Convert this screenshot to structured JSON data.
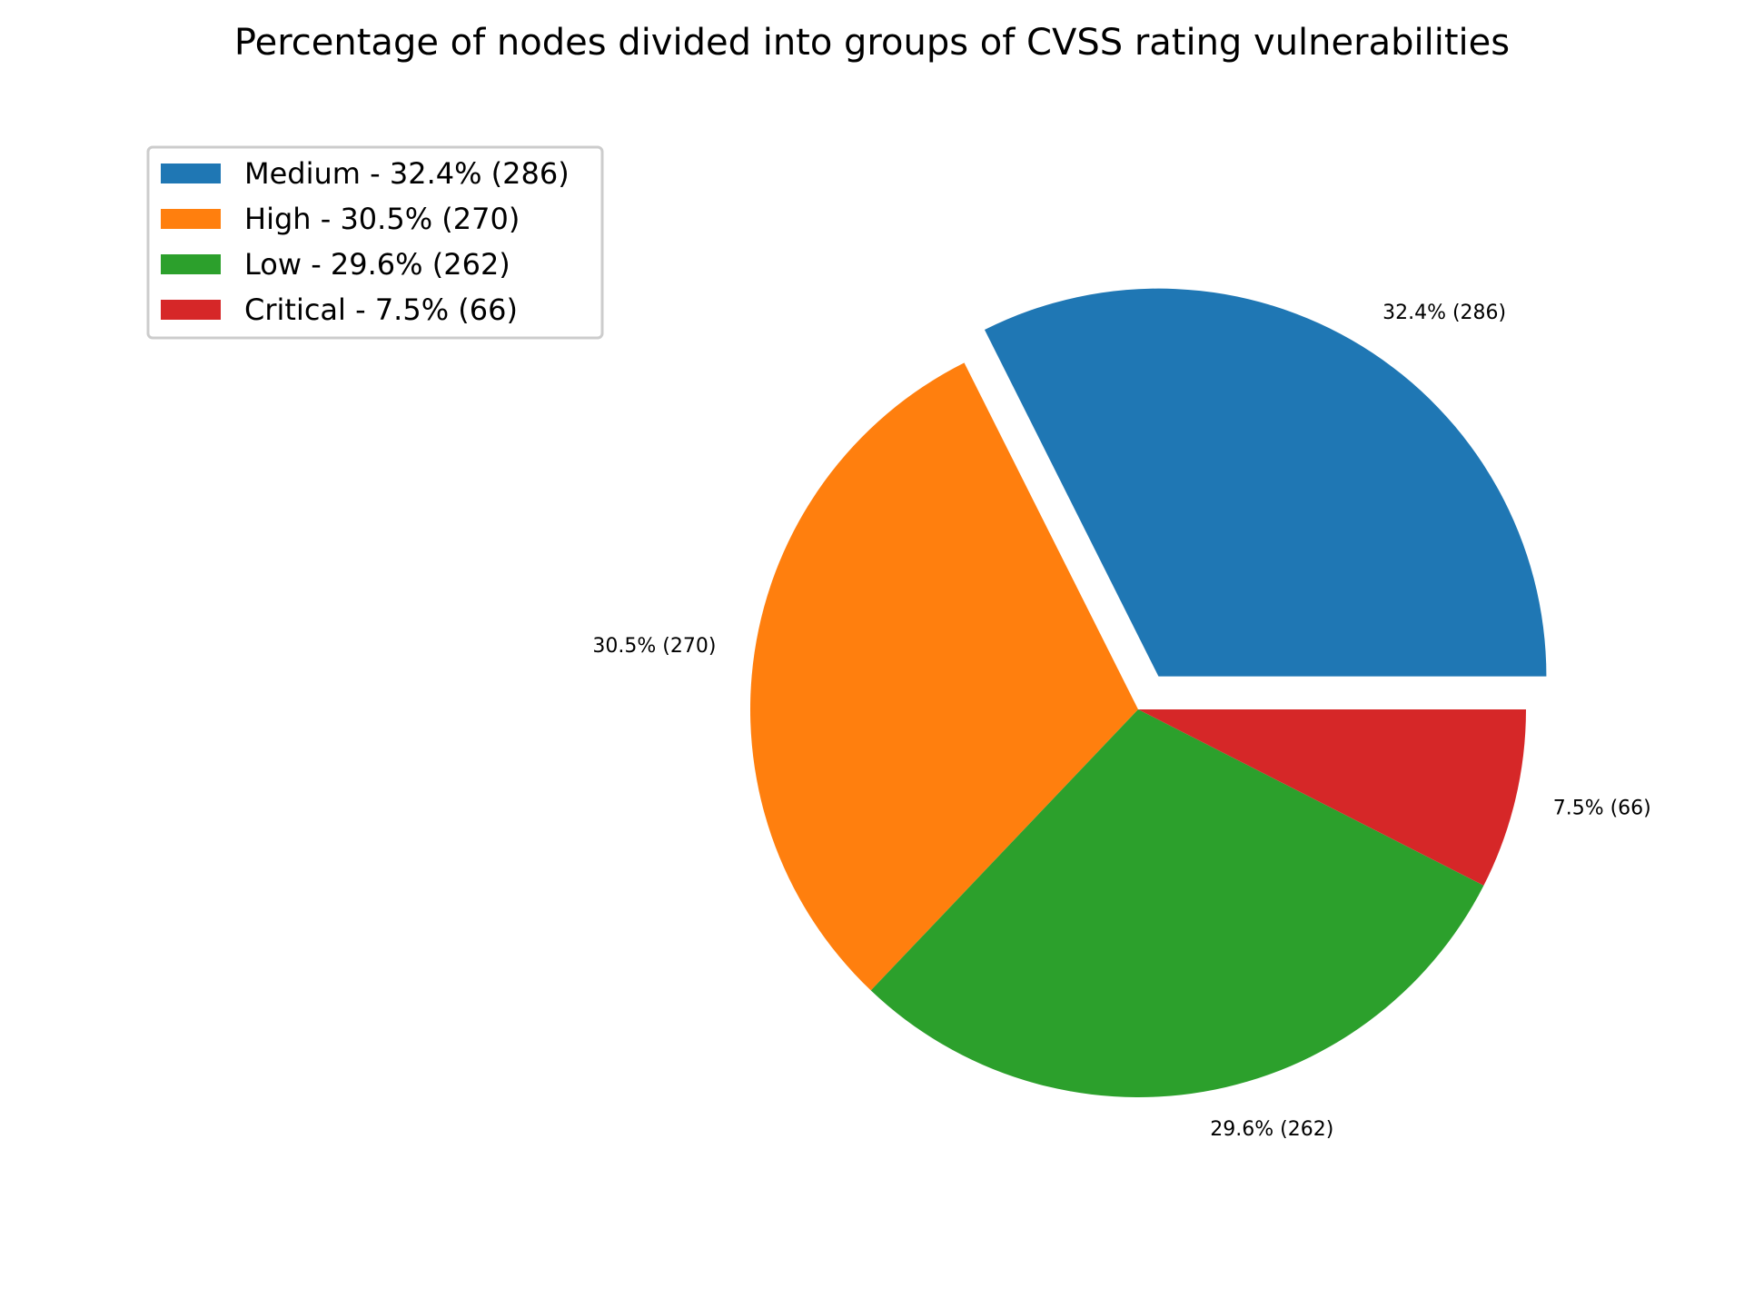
{
  "chart_data": {
    "type": "pie",
    "title": "Percentage of nodes divided into groups of CVSS rating vulnerabilities",
    "slices": [
      {
        "key": "medium",
        "label": "Medium",
        "percent": 32.4,
        "count": 286,
        "color": "#1f77b4",
        "exploded": true,
        "legend_text": "Medium - 32.4% (286)",
        "slice_label": "32.4% (286)"
      },
      {
        "key": "high",
        "label": "High",
        "percent": 30.5,
        "count": 270,
        "color": "#ff7f0e",
        "exploded": false,
        "legend_text": "High - 30.5% (270)",
        "slice_label": "30.5% (270)"
      },
      {
        "key": "low",
        "label": "Low",
        "percent": 29.6,
        "count": 262,
        "color": "#2ca02c",
        "exploded": false,
        "legend_text": "Low - 29.6% (262)",
        "slice_label": "29.6% (262)"
      },
      {
        "key": "critical",
        "label": "Critical",
        "percent": 7.5,
        "count": 66,
        "color": "#d62728",
        "exploded": false,
        "legend_text": "Critical - 7.5% (66)",
        "slice_label": "7.5% (66)"
      }
    ],
    "start_angle_deg": 0,
    "direction": "counterclockwise",
    "legend_position": "top-left"
  }
}
